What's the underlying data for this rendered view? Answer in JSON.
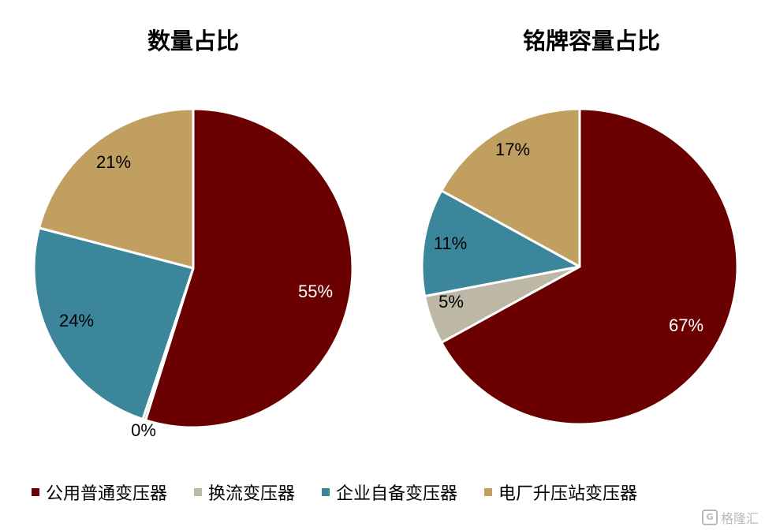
{
  "chart_data": [
    {
      "type": "pie",
      "title": "数量占比",
      "slices": [
        {
          "category": "公用普通变压器",
          "value": 55,
          "label": "55%"
        },
        {
          "category": "换流变压器",
          "value": 0.3,
          "label": "0%"
        },
        {
          "category": "企业自备变压器",
          "value": 24,
          "label": "24%"
        },
        {
          "category": "电厂升压站变压器",
          "value": 21,
          "label": "21%"
        }
      ]
    },
    {
      "type": "pie",
      "title": "铭牌容量占比",
      "slices": [
        {
          "category": "公用普通变压器",
          "value": 67,
          "label": "67%"
        },
        {
          "category": "换流变压器",
          "value": 5,
          "label": "5%"
        },
        {
          "category": "企业自备变压器",
          "value": 11,
          "label": "11%"
        },
        {
          "category": "电厂升压站变压器",
          "value": 17,
          "label": "17%"
        }
      ]
    }
  ],
  "legend": [
    {
      "label": "公用普通变压器",
      "color": "#6b0000"
    },
    {
      "label": "换流变压器",
      "color": "#bdb8a6"
    },
    {
      "label": "企业自备变压器",
      "color": "#3b869a"
    },
    {
      "label": "电厂升压站变压器",
      "color": "#c09f60"
    }
  ],
  "watermark": {
    "logo": "G",
    "text": "格隆汇"
  }
}
